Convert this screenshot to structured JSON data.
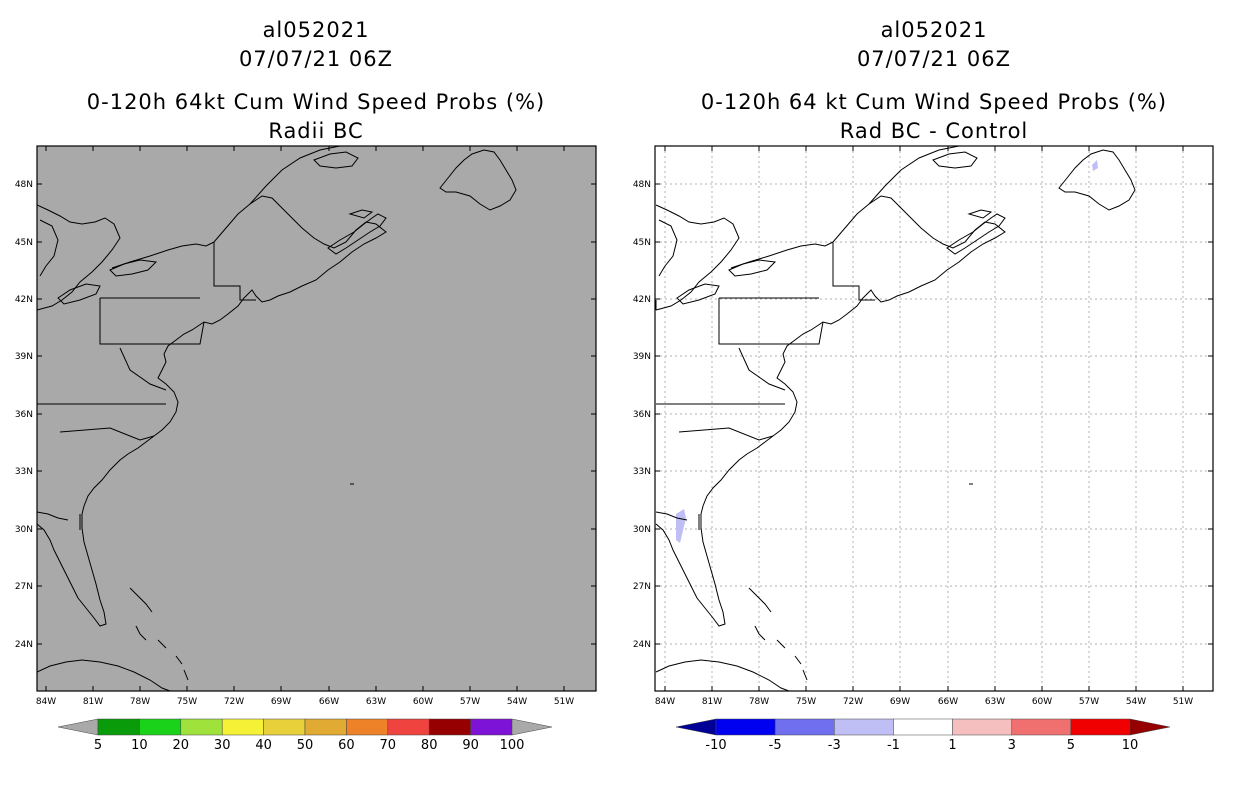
{
  "left_panel": {
    "storm_id": "al052021",
    "datetime": "07/07/21 06Z",
    "title": "0-120h 64kt Cum Wind Speed Probs (%)",
    "subtitle": "Radii BC",
    "background_color": "#a9a9a9",
    "colorbar": {
      "labels": [
        "5",
        "10",
        "20",
        "30",
        "40",
        "50",
        "60",
        "70",
        "80",
        "90",
        "100"
      ],
      "colors": [
        "#a9a9a9",
        "#0a9b0a",
        "#19d219",
        "#9fe23b",
        "#f4f136",
        "#e7d03a",
        "#e1aa32",
        "#ed8228",
        "#ef4340",
        "#970000",
        "#7c13d6",
        "#a9a9a9"
      ]
    }
  },
  "right_panel": {
    "storm_id": "al052021",
    "datetime": "07/07/21 06Z",
    "title": "0-120h 64 kt Cum Wind Speed Probs (%)",
    "subtitle": "Rad BC - Control",
    "background_color": "#ffffff",
    "colorbar": {
      "labels": [
        "-10",
        "-5",
        "-3",
        "-1",
        "1",
        "3",
        "5",
        "10"
      ],
      "colors": [
        "#000096",
        "#0000f0",
        "#6f6ff0",
        "#bfbff5",
        "#ffffff",
        "#f5bfbf",
        "#f07070",
        "#f00000",
        "#960000"
      ]
    }
  },
  "axes": {
    "lat_labels": [
      "48N",
      "45N",
      "42N",
      "39N",
      "36N",
      "33N",
      "30N",
      "27N",
      "24N"
    ],
    "lon_labels": [
      "84W",
      "81W",
      "78W",
      "75W",
      "72W",
      "69W",
      "66W",
      "63W",
      "60W",
      "57W",
      "54W",
      "51W"
    ]
  }
}
